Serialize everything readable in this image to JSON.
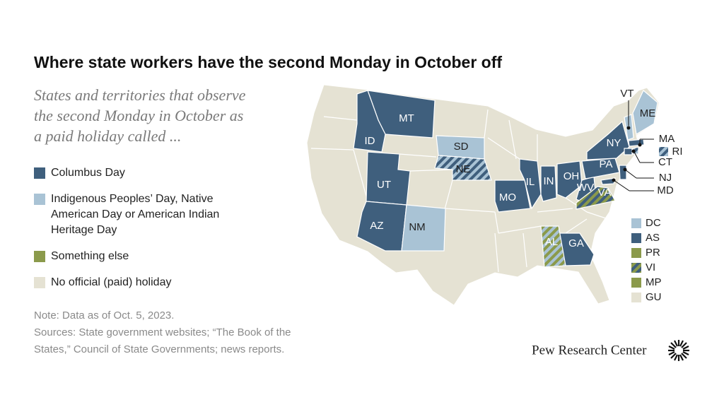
{
  "title": "Where state workers have the second Monday in October off",
  "subtitle": [
    "States and territories that observe",
    "the second Monday in October as",
    "a paid holiday called ..."
  ],
  "legend": [
    {
      "lines": [
        "Columbus Day"
      ],
      "color": "#3f5f7d"
    },
    {
      "lines": [
        "Indigenous Peoples’ Day, Native",
        "American Day or American Indian",
        "Heritage Day"
      ],
      "color": "#a9c3d5"
    },
    {
      "lines": [
        "Something else"
      ],
      "color": "#8b9a4b"
    },
    {
      "lines": [
        "No official (paid) holiday"
      ],
      "color": "#e5e2d3"
    }
  ],
  "map": {
    "land_color": "#e5e2d3",
    "states": [
      {
        "label": "MT",
        "colors": [
          "#3f5f7d"
        ]
      },
      {
        "label": "ID",
        "colors": [
          "#3f5f7d"
        ]
      },
      {
        "label": "UT",
        "colors": [
          "#3f5f7d"
        ]
      },
      {
        "label": "AZ",
        "colors": [
          "#3f5f7d"
        ]
      },
      {
        "label": "NM",
        "colors": [
          "#a9c3d5"
        ]
      },
      {
        "label": "SD",
        "colors": [
          "#a9c3d5"
        ]
      },
      {
        "label": "NE",
        "colors": [
          "#a9c3d5",
          "#3f5f7d"
        ]
      },
      {
        "label": "MO",
        "colors": [
          "#3f5f7d"
        ]
      },
      {
        "label": "IL",
        "colors": [
          "#3f5f7d"
        ]
      },
      {
        "label": "IN",
        "colors": [
          "#3f5f7d"
        ]
      },
      {
        "label": "OH",
        "colors": [
          "#3f5f7d"
        ]
      },
      {
        "label": "WV",
        "colors": [
          "#3f5f7d"
        ]
      },
      {
        "label": "VA",
        "colors": [
          "#8b9a4b",
          "#3f5f7d"
        ]
      },
      {
        "label": "PA",
        "colors": [
          "#3f5f7d"
        ]
      },
      {
        "label": "NY",
        "colors": [
          "#3f5f7d"
        ]
      },
      {
        "label": "VT",
        "colors": [
          "#a9c3d5"
        ]
      },
      {
        "label": "ME",
        "colors": [
          "#a9c3d5"
        ]
      },
      {
        "label": "MA",
        "colors": [
          "#3f5f7d"
        ]
      },
      {
        "label": "RI",
        "colors": [
          "#a9c3d5",
          "#3f5f7d"
        ]
      },
      {
        "label": "CT",
        "colors": [
          "#3f5f7d"
        ]
      },
      {
        "label": "NJ",
        "colors": [
          "#3f5f7d"
        ]
      },
      {
        "label": "MD",
        "colors": [
          "#3f5f7d"
        ]
      },
      {
        "label": "GA",
        "colors": [
          "#3f5f7d"
        ]
      },
      {
        "label": "AL",
        "colors": [
          "#a9c3d5",
          "#8b9a4b"
        ]
      }
    ],
    "territories": [
      {
        "label": "DC",
        "colors": [
          "#a9c3d5"
        ]
      },
      {
        "label": "AS",
        "colors": [
          "#3f5f7d"
        ]
      },
      {
        "label": "PR",
        "colors": [
          "#8b9a4b"
        ]
      },
      {
        "label": "VI",
        "colors": [
          "#3f5f7d",
          "#8b9a4b"
        ]
      },
      {
        "label": "MP",
        "colors": [
          "#8b9a4b"
        ]
      },
      {
        "label": "GU",
        "colors": [
          "#e5e2d3"
        ]
      }
    ]
  },
  "note": [
    "Note: Data as of Oct. 5, 2023.",
    "Sources: State government websites; “The Book of the",
    "States,” Council of State Governments; news reports."
  ],
  "brand": "Pew Research Center"
}
